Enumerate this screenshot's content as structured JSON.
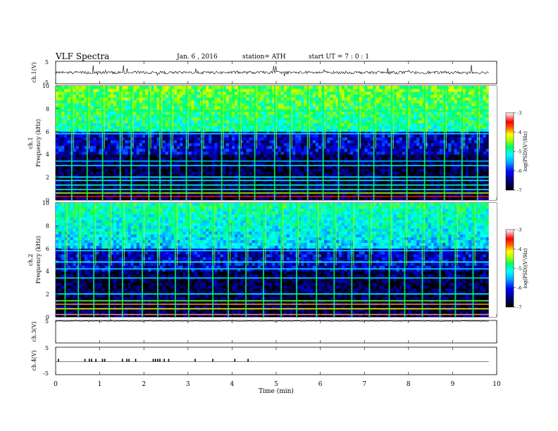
{
  "header": {
    "title": "VLF Spectra",
    "date": "Jan. 6 , 2016",
    "station": "station= ATH",
    "start": "start UT = 7 : 0 : 1"
  },
  "colors": {
    "panel_background": "#000000",
    "waveform": "#000000",
    "colormap": [
      "#000000",
      "#00007a",
      "#0000ff",
      "#00aaff",
      "#00ffff",
      "#00ff66",
      "#aaff00",
      "#ffff00",
      "#ff6600",
      "#ff0000",
      "#ffffff"
    ]
  },
  "chart_data": [
    {
      "type": "line",
      "name": "ch1-waveform",
      "ylabel": "ch.1(V)",
      "ylim": [
        -5,
        5
      ],
      "yticks": [
        "5",
        "-5"
      ],
      "xlim": [
        0,
        10
      ],
      "baseline": 0,
      "data_extent_min": 9.82
    },
    {
      "type": "heatmap",
      "name": "ch1-spectrogram",
      "ylabel": "ch.1\nFrequency (kHz)",
      "ylim": [
        0,
        10
      ],
      "yticks": [
        "0",
        "2",
        "4",
        "6",
        "8",
        "10"
      ],
      "xlim": [
        0,
        10
      ],
      "data_extent_min": 9.82,
      "colorbar": {
        "label": "log(PSD)(V²/Hz)",
        "range": [
          -7,
          -3
        ],
        "ticks": [
          "-3",
          "-4",
          "-5",
          "-6",
          "-7"
        ]
      },
      "bands_khz": [
        {
          "f": 0.3,
          "level": -3.4
        },
        {
          "f": 0.6,
          "level": -4.6
        },
        {
          "f": 0.9,
          "level": -5.2
        },
        {
          "f": 1.3,
          "level": -5.3
        },
        {
          "f": 1.7,
          "level": -5.5
        },
        {
          "f": 2.0,
          "level": -5.4
        },
        {
          "f": 3.0,
          "level": -5.6
        },
        {
          "f": 3.4,
          "level": -5.7
        },
        {
          "f": 5.8,
          "level": -5.6
        },
        {
          "f": 7.8,
          "level": -5.0
        }
      ],
      "bursts_min": [
        0.35,
        0.7,
        1.05,
        1.45,
        1.7,
        2.1,
        2.35,
        2.6,
        2.95,
        3.3,
        3.75,
        4.15,
        4.5,
        4.95,
        5.3,
        5.7,
        6.05,
        6.4,
        6.85,
        7.2,
        7.6,
        7.95,
        8.35,
        8.8,
        9.2,
        9.55
      ]
    },
    {
      "type": "heatmap",
      "name": "ch2-spectrogram",
      "ylabel": "ch.2\nFrequency (kHz)",
      "ylim": [
        0,
        10
      ],
      "yticks": [
        "0",
        "2",
        "4",
        "6",
        "8",
        "10"
      ],
      "xlim": [
        0,
        10
      ],
      "data_extent_min": 9.82,
      "colorbar": {
        "label": "log(PSD)(V²/Hz)",
        "range": [
          -7,
          -3
        ],
        "ticks": [
          "-3",
          "-4",
          "-5",
          "-6",
          "-7"
        ]
      },
      "bands_khz": [
        {
          "f": 0.2,
          "level": -3.2
        },
        {
          "f": 0.7,
          "level": -4.2
        },
        {
          "f": 1.1,
          "level": -3.9
        },
        {
          "f": 1.4,
          "level": -4.8
        },
        {
          "f": 2.0,
          "level": -5.4
        },
        {
          "f": 3.4,
          "level": -5.6
        },
        {
          "f": 4.2,
          "level": -5.6
        },
        {
          "f": 4.8,
          "level": -5.4
        },
        {
          "f": 5.8,
          "level": -5.6
        }
      ],
      "bursts_min": [
        0.2,
        0.5,
        0.85,
        1.2,
        1.5,
        1.95,
        2.3,
        2.7,
        3.0,
        3.55,
        3.9,
        4.3,
        4.7,
        5.1,
        5.45,
        5.9,
        6.3,
        6.7,
        7.1,
        7.55,
        7.9,
        8.3,
        8.7,
        9.05,
        9.45
      ]
    },
    {
      "type": "line",
      "name": "ch3-waveform",
      "ylabel": "ch.3(V)",
      "ylim": [
        -5,
        5
      ],
      "yticks": [
        "5"
      ],
      "xlim": [
        0,
        10
      ],
      "baseline": 4.7,
      "data_extent_min": 9.82
    },
    {
      "type": "line",
      "name": "ch4-waveform",
      "ylabel": "ch.4(V)",
      "ylim": [
        -5,
        5
      ],
      "yticks": [
        "5",
        "-5"
      ],
      "xlim": [
        0,
        10
      ],
      "baseline": 0,
      "data_extent_min": 9.82,
      "pulses_min": [
        0.05,
        0.65,
        0.75,
        0.8,
        0.9,
        1.05,
        1.1,
        1.5,
        1.6,
        1.65,
        1.8,
        2.2,
        2.25,
        2.3,
        2.35,
        2.45,
        2.55,
        3.15,
        3.55,
        4.05,
        4.35
      ]
    }
  ],
  "x_axis": {
    "label": "Time (min)",
    "range": [
      0,
      10
    ],
    "ticks": [
      "0",
      "1",
      "2",
      "3",
      "4",
      "5",
      "6",
      "7",
      "8",
      "9",
      "10"
    ]
  }
}
